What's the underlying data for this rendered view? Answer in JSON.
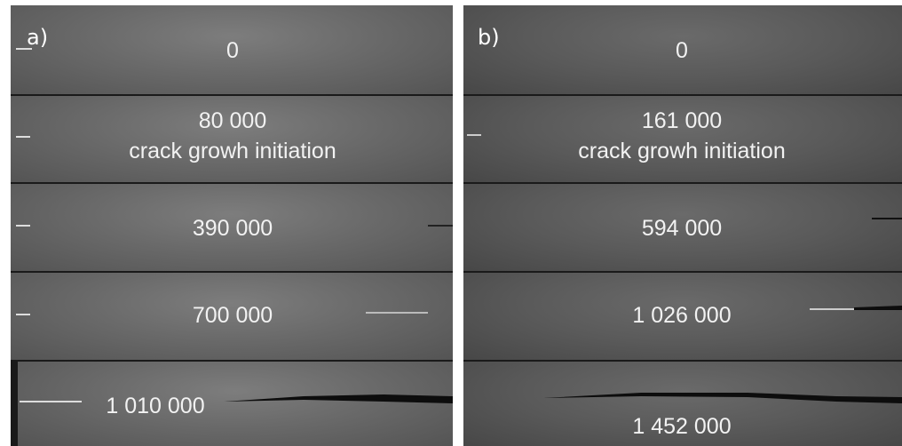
{
  "panels": [
    {
      "label": "a)",
      "frames": [
        {
          "cycles": "0"
        },
        {
          "cycles": "80 000",
          "note": "crack growh initiation"
        },
        {
          "cycles": "390 000"
        },
        {
          "cycles": "700 000"
        },
        {
          "cycles": "1 010 000"
        }
      ]
    },
    {
      "label": "b)",
      "frames": [
        {
          "cycles": "0"
        },
        {
          "cycles": "161 000",
          "note": "crack growh initiation"
        },
        {
          "cycles": "594 000"
        },
        {
          "cycles": "1 026 000"
        },
        {
          "cycles": "1 452 000"
        }
      ]
    }
  ]
}
